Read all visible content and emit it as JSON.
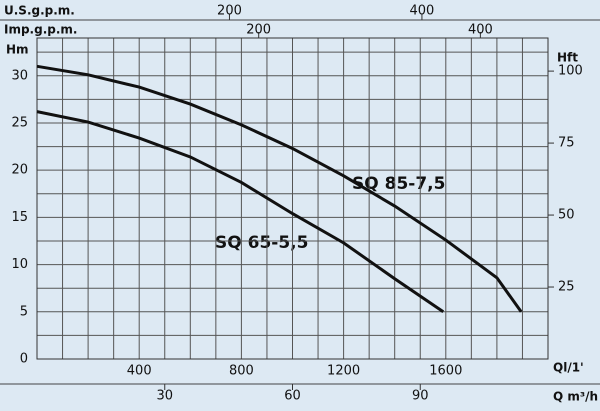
{
  "chart_data": {
    "type": "line",
    "axis_labels": {
      "us": "U.S.g.p.m.",
      "imp": "Imp.g.p.m.",
      "hm": "Hm",
      "hft": "Hft",
      "ql": "Ql/1'",
      "q": "Q m³/h"
    },
    "xlim": [
      0,
      2000
    ],
    "xticks": [
      400,
      800,
      1200,
      1600
    ],
    "ylim": [
      0,
      34
    ],
    "yticks": [
      0,
      5,
      10,
      15,
      20,
      25,
      30
    ],
    "y2lim": [
      0,
      111.5
    ],
    "y2ticks": [
      25,
      50,
      75,
      100
    ],
    "x_us": {
      "lim": [
        0,
        531
      ],
      "ticks": [
        200,
        400
      ]
    },
    "x_imp": {
      "lim": [
        0,
        461
      ],
      "ticks": [
        200,
        400
      ]
    },
    "x_q": {
      "lim": [
        0,
        120
      ],
      "ticks": [
        30,
        60,
        90
      ]
    },
    "x_gridlines": [
      0,
      100,
      200,
      300,
      400,
      500,
      600,
      700,
      800,
      900,
      1000,
      1100,
      1200,
      1300,
      1400,
      1500,
      1600,
      1700,
      1800,
      1900,
      2000
    ],
    "y_gridlines": [
      0,
      2.5,
      5,
      7.5,
      10,
      12.5,
      15,
      17.5,
      20,
      22.5,
      25,
      27.5,
      30,
      32.5
    ],
    "series": [
      {
        "name": "SQ 85-7,5",
        "color": "#111111",
        "x": [
          0,
          200,
          400,
          600,
          800,
          1000,
          1200,
          1400,
          1600,
          1800,
          1895
        ],
        "values": [
          31,
          30.1,
          28.8,
          27.0,
          24.8,
          22.3,
          19.4,
          16.2,
          12.6,
          8.6,
          5
        ]
      },
      {
        "name": "SQ 65-5,5",
        "color": "#111111",
        "x": [
          0,
          200,
          400,
          600,
          800,
          1000,
          1200,
          1400,
          1590
        ],
        "values": [
          26.2,
          25.1,
          23.4,
          21.4,
          18.7,
          15.4,
          12.3,
          8.5,
          5
        ]
      }
    ]
  }
}
